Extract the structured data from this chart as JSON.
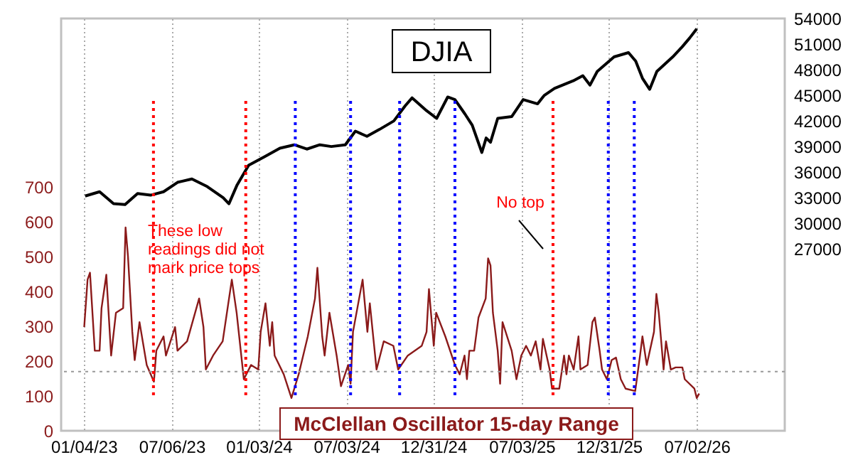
{
  "chart_data": {
    "type": "line",
    "xlim": [
      "2022-11-18",
      "2027-01-01"
    ],
    "xticks": [
      {
        "value": "2023-01-04",
        "label": "01/04/23"
      },
      {
        "value": "2023-07-06",
        "label": "07/06/23"
      },
      {
        "value": "2024-01-03",
        "label": "01/03/24"
      },
      {
        "value": "2024-07-03",
        "label": "07/03/24"
      },
      {
        "value": "2024-12-31",
        "label": "12/31/24"
      },
      {
        "value": "2025-07-03",
        "label": "07/03/25"
      },
      {
        "value": "2025-12-31",
        "label": "12/31/25"
      },
      {
        "value": "2026-07-02",
        "label": "07/02/26"
      }
    ],
    "ylim": [
      0,
      1184
    ],
    "yticks": [
      0,
      100,
      200,
      300,
      400,
      500,
      600,
      700
    ],
    "y2lim": [
      5700,
      54000
    ],
    "y2ticks": [
      27000,
      30000,
      33000,
      36000,
      39000,
      42000,
      45000,
      48000,
      51000,
      54000
    ],
    "grid": "x",
    "series": [
      {
        "name": "McClellan Oscillator 15-day Range",
        "color": "#8b1a1a",
        "axis": "y",
        "x": [
          "2023-01-05",
          "2023-01-12",
          "2023-01-17",
          "2023-01-27",
          "2023-02-06",
          "2023-02-10",
          "2023-02-20",
          "2023-03-02",
          "2023-03-12",
          "2023-03-27",
          "2023-04-01",
          "2023-04-06",
          "2023-04-15",
          "2023-04-20",
          "2023-04-30",
          "2023-05-15",
          "2023-05-30",
          "2023-06-04",
          "2023-06-19",
          "2023-06-24",
          "2023-07-13",
          "2023-07-18",
          "2023-08-07",
          "2023-09-01",
          "2023-09-10",
          "2023-09-15",
          "2023-09-30",
          "2023-10-20",
          "2023-11-08",
          "2023-11-18",
          "2023-12-03",
          "2023-12-18",
          "2024-01-02",
          "2024-01-07",
          "2024-01-17",
          "2024-01-26",
          "2024-01-31",
          "2024-02-05",
          "2024-02-24",
          "2024-03-11",
          "2024-03-26",
          "2024-04-14",
          "2024-04-29",
          "2024-05-04",
          "2024-05-14",
          "2024-05-19",
          "2024-05-29",
          "2024-06-13",
          "2024-06-22",
          "2024-07-07",
          "2024-07-12",
          "2024-07-17",
          "2024-08-06",
          "2024-08-16",
          "2024-08-21",
          "2024-09-04",
          "2024-09-19",
          "2024-10-09",
          "2024-10-19",
          "2024-11-08",
          "2024-12-07",
          "2024-12-17",
          "2024-12-22",
          "2025-01-01",
          "2025-01-06",
          "2025-01-25",
          "2025-02-14",
          "2025-02-24",
          "2025-03-06",
          "2025-03-11",
          "2025-03-16",
          "2025-03-26",
          "2025-04-04",
          "2025-04-19",
          "2025-04-24",
          "2025-04-29",
          "2025-05-04",
          "2025-05-14",
          "2025-05-19",
          "2025-05-24",
          "2025-06-12",
          "2025-06-22",
          "2025-07-02",
          "2025-07-12",
          "2025-07-22",
          "2025-08-01",
          "2025-08-11",
          "2025-08-16",
          "2025-08-30",
          "2025-09-04",
          "2025-09-19",
          "2025-09-29",
          "2025-10-04",
          "2025-10-09",
          "2025-10-19",
          "2025-10-29",
          "2025-11-02",
          "2025-11-17",
          "2025-11-27",
          "2025-12-02",
          "2025-12-12",
          "2025-12-17",
          "2025-12-27",
          "2026-01-06",
          "2026-01-15",
          "2026-01-25",
          "2026-02-04",
          "2026-02-24",
          "2026-03-06",
          "2026-03-11",
          "2026-03-20",
          "2026-04-04",
          "2026-04-09",
          "2026-04-14",
          "2026-04-24",
          "2026-04-29",
          "2026-05-09",
          "2026-05-19",
          "2026-06-02",
          "2026-06-07",
          "2026-06-27",
          "2026-07-02",
          "2026-07-07"
        ],
        "values": [
          298,
          434,
          454,
          230,
          230,
          352,
          448,
          216,
          339,
          352,
          584,
          502,
          284,
          203,
          312,
          189,
          141,
          230,
          271,
          216,
          298,
          230,
          257,
          380,
          298,
          176,
          216,
          257,
          434,
          339,
          148,
          189,
          176,
          284,
          366,
          244,
          312,
          216,
          162,
          94,
          162,
          271,
          380,
          468,
          271,
          216,
          339,
          216,
          128,
          189,
          135,
          284,
          434,
          284,
          366,
          176,
          257,
          244,
          176,
          216,
          244,
          284,
          407,
          244,
          339,
          271,
          189,
          162,
          216,
          148,
          230,
          230,
          325,
          380,
          495,
          475,
          339,
          230,
          135,
          312,
          230,
          148,
          216,
          244,
          216,
          257,
          176,
          264,
          176,
          121,
          121,
          216,
          162,
          216,
          176,
          271,
          176,
          189,
          312,
          325,
          230,
          176,
          148,
          203,
          210,
          148,
          121,
          114,
          216,
          271,
          189,
          284,
          393,
          339,
          176,
          257,
          176,
          182,
          182,
          148,
          121,
          94,
          107
        ]
      },
      {
        "name": "DJIA",
        "color": "#000000",
        "axis": "y2",
        "x": [
          "2023-01-07",
          "2023-02-06",
          "2023-03-07",
          "2023-03-31",
          "2023-04-26",
          "2023-05-23",
          "2023-06-19",
          "2023-07-18",
          "2023-08-17",
          "2023-09-18",
          "2023-10-21",
          "2023-11-02",
          "2023-11-19",
          "2023-12-13",
          "2024-01-15",
          "2024-02-16",
          "2024-03-17",
          "2024-04-12",
          "2024-05-09",
          "2024-06-02",
          "2024-07-01",
          "2024-07-22",
          "2024-08-15",
          "2024-09-10",
          "2024-10-10",
          "2024-11-03",
          "2024-11-17",
          "2024-12-17",
          "2025-01-07",
          "2025-01-30",
          "2025-02-14",
          "2025-03-07",
          "2025-03-22",
          "2025-04-11",
          "2025-04-20",
          "2025-04-29",
          "2025-05-14",
          "2025-06-12",
          "2025-07-06",
          "2025-08-05",
          "2025-08-19",
          "2025-09-09",
          "2025-10-18",
          "2025-11-07",
          "2025-11-22",
          "2025-12-07",
          "2026-01-11",
          "2026-02-10",
          "2026-02-25",
          "2026-03-11",
          "2026-03-26",
          "2026-04-10",
          "2026-05-13",
          "2026-06-02",
          "2026-06-17",
          "2026-07-02"
        ],
        "values": [
          33200,
          33700,
          32300,
          32200,
          33500,
          33300,
          33700,
          34800,
          35200,
          34300,
          33000,
          32300,
          34500,
          36800,
          37800,
          38800,
          39200,
          38700,
          39200,
          39000,
          39200,
          40800,
          40200,
          41000,
          42000,
          43800,
          44700,
          43200,
          42300,
          44800,
          44500,
          42800,
          41500,
          38300,
          40000,
          39500,
          42300,
          42500,
          44500,
          44000,
          45000,
          45800,
          46700,
          47300,
          46200,
          47800,
          49500,
          50000,
          49000,
          47000,
          45700,
          47800,
          49500,
          50700,
          51700,
          52800
        ]
      }
    ],
    "ref_lines": [
      {
        "axis": "y",
        "value": 170,
        "color": "#999999",
        "line_style": "dotted"
      },
      {
        "axis": "x",
        "value": "2023-05-29",
        "color": "#ff0000",
        "line_style": "dotted"
      },
      {
        "axis": "x",
        "value": "2023-12-07",
        "color": "#ff0000",
        "line_style": "dotted"
      },
      {
        "axis": "x",
        "value": "2024-03-19",
        "color": "#0000ff",
        "line_style": "dotted"
      },
      {
        "axis": "x",
        "value": "2024-07-12",
        "color": "#0000ff",
        "line_style": "dotted"
      },
      {
        "axis": "x",
        "value": "2024-10-22",
        "color": "#0000ff",
        "line_style": "dotted"
      },
      {
        "axis": "x",
        "value": "2025-02-14",
        "color": "#0000ff",
        "line_style": "dotted"
      },
      {
        "axis": "x",
        "value": "2025-09-06",
        "color": "#ff0000",
        "line_style": "dotted"
      },
      {
        "axis": "x",
        "value": "2025-12-30",
        "color": "#0000ff",
        "line_style": "dotted"
      },
      {
        "axis": "x",
        "value": "2026-02-22",
        "color": "#0000ff",
        "line_style": "dotted"
      }
    ],
    "annotations": [
      "These low\nreadings did not\nmark price tops",
      "No top"
    ]
  }
}
